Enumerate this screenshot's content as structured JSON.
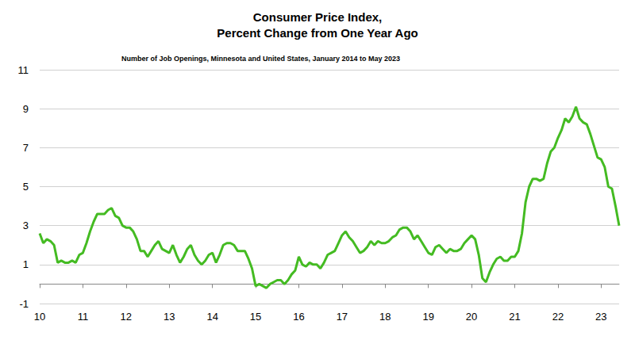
{
  "chart_data": {
    "type": "line",
    "title": "Consumer Price Index,\nPercent Change from One Year Ago",
    "subtitle": "Number of Job Openings, Minnesota and United States, January 2014 to May 2023",
    "categories": [
      "10",
      null,
      null,
      null,
      null,
      null,
      null,
      null,
      null,
      null,
      null,
      null,
      "11",
      null,
      null,
      null,
      null,
      null,
      null,
      null,
      null,
      null,
      null,
      null,
      "12",
      null,
      null,
      null,
      null,
      null,
      null,
      null,
      null,
      null,
      null,
      null,
      "13",
      null,
      null,
      null,
      null,
      null,
      null,
      null,
      null,
      null,
      null,
      null,
      "14",
      null,
      null,
      null,
      null,
      null,
      null,
      null,
      null,
      null,
      null,
      null,
      "15",
      null,
      null,
      null,
      null,
      null,
      null,
      null,
      null,
      null,
      null,
      null,
      "16",
      null,
      null,
      null,
      null,
      null,
      null,
      null,
      null,
      null,
      null,
      null,
      "17",
      null,
      null,
      null,
      null,
      null,
      null,
      null,
      null,
      null,
      null,
      null,
      "18",
      null,
      null,
      null,
      null,
      null,
      null,
      null,
      null,
      null,
      null,
      null,
      "19",
      null,
      null,
      null,
      null,
      null,
      null,
      null,
      null,
      null,
      null,
      null,
      "20",
      null,
      null,
      null,
      null,
      null,
      null,
      null,
      null,
      null,
      null,
      null,
      "21",
      null,
      null,
      null,
      null,
      null,
      null,
      null,
      null,
      null,
      null,
      null,
      "22",
      null,
      null,
      null,
      null,
      null,
      null,
      null,
      null,
      null,
      null,
      null,
      "23",
      null,
      null,
      null,
      null,
      null
    ],
    "values": [
      2.6,
      2.1,
      2.3,
      2.2,
      2.0,
      1.1,
      1.2,
      1.1,
      1.1,
      1.2,
      1.1,
      1.5,
      1.6,
      2.1,
      2.7,
      3.2,
      3.6,
      3.6,
      3.6,
      3.8,
      3.9,
      3.5,
      3.4,
      3.0,
      2.9,
      2.9,
      2.7,
      2.3,
      1.7,
      1.7,
      1.4,
      1.7,
      2.0,
      2.2,
      1.8,
      1.7,
      1.6,
      2.0,
      1.5,
      1.1,
      1.4,
      1.8,
      2.0,
      1.5,
      1.2,
      1.0,
      1.2,
      1.5,
      1.6,
      1.1,
      1.5,
      2.0,
      2.1,
      2.1,
      2.0,
      1.7,
      1.7,
      1.7,
      1.3,
      0.8,
      -0.1,
      0.0,
      -0.1,
      -0.2,
      0.0,
      0.1,
      0.2,
      0.2,
      0.0,
      0.2,
      0.5,
      0.7,
      1.4,
      1.0,
      0.9,
      1.1,
      1.0,
      1.0,
      0.8,
      1.1,
      1.5,
      1.6,
      1.7,
      2.1,
      2.5,
      2.7,
      2.4,
      2.2,
      1.9,
      1.6,
      1.7,
      1.9,
      2.2,
      2.0,
      2.2,
      2.1,
      2.1,
      2.2,
      2.4,
      2.5,
      2.8,
      2.9,
      2.9,
      2.7,
      2.3,
      2.5,
      2.2,
      1.9,
      1.6,
      1.5,
      1.9,
      2.0,
      1.8,
      1.6,
      1.8,
      1.7,
      1.7,
      1.8,
      2.1,
      2.3,
      2.5,
      2.3,
      1.5,
      0.3,
      0.1,
      0.6,
      1.0,
      1.3,
      1.4,
      1.2,
      1.2,
      1.4,
      1.4,
      1.7,
      2.6,
      4.2,
      5.0,
      5.4,
      5.4,
      5.3,
      5.4,
      6.2,
      6.8,
      7.0,
      7.5,
      7.9,
      8.5,
      8.3,
      8.6,
      9.1,
      8.5,
      8.3,
      8.2,
      7.7,
      7.1,
      6.5,
      6.4,
      6.0,
      5.0,
      4.9,
      4.0,
      3.0
    ],
    "color": "#44bb22",
    "ylim": [
      -1,
      11
    ],
    "yticks": [
      -1,
      1,
      3,
      5,
      7,
      9,
      11
    ],
    "grid": true
  }
}
